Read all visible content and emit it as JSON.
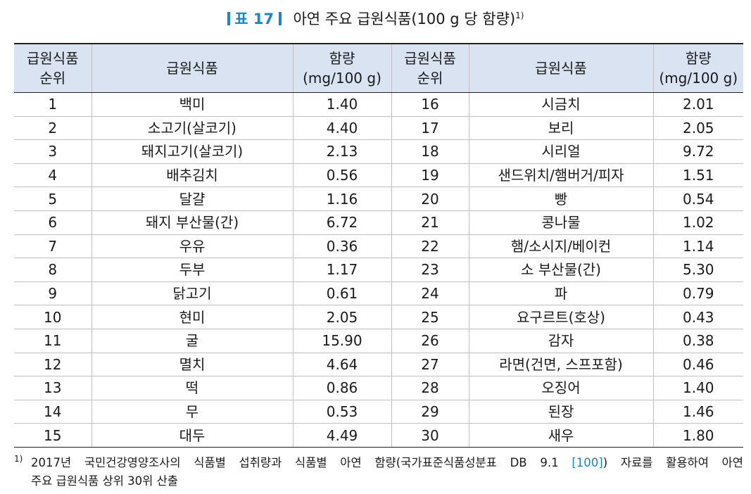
{
  "title": {
    "label": "표 17",
    "text": "아연 주요 급원식품(100 g 당 함량)",
    "footnote_mark": "1)"
  },
  "table": {
    "headers": {
      "rank": [
        "급원식품",
        "순위"
      ],
      "food": "급원식품",
      "amount": [
        "함량",
        "(mg/100 g)"
      ]
    },
    "left": [
      {
        "rank": "1",
        "food": "백미",
        "amount": "1.40"
      },
      {
        "rank": "2",
        "food": "소고기(살코기)",
        "amount": "4.40"
      },
      {
        "rank": "3",
        "food": "돼지고기(살코기)",
        "amount": "2.13"
      },
      {
        "rank": "4",
        "food": "배추김치",
        "amount": "0.56"
      },
      {
        "rank": "5",
        "food": "달걀",
        "amount": "1.16"
      },
      {
        "rank": "6",
        "food": "돼지 부산물(간)",
        "amount": "6.72"
      },
      {
        "rank": "7",
        "food": "우유",
        "amount": "0.36"
      },
      {
        "rank": "8",
        "food": "두부",
        "amount": "1.17"
      },
      {
        "rank": "9",
        "food": "닭고기",
        "amount": "0.61"
      },
      {
        "rank": "10",
        "food": "현미",
        "amount": "2.05"
      },
      {
        "rank": "11",
        "food": "굴",
        "amount": "15.90"
      },
      {
        "rank": "12",
        "food": "멸치",
        "amount": "4.64"
      },
      {
        "rank": "13",
        "food": "떡",
        "amount": "0.86"
      },
      {
        "rank": "14",
        "food": "무",
        "amount": "0.53"
      },
      {
        "rank": "15",
        "food": "대두",
        "amount": "4.49"
      }
    ],
    "right": [
      {
        "rank": "16",
        "food": "시금치",
        "amount": "2.01"
      },
      {
        "rank": "17",
        "food": "보리",
        "amount": "2.05"
      },
      {
        "rank": "18",
        "food": "시리얼",
        "amount": "9.72"
      },
      {
        "rank": "19",
        "food": "샌드위치/햄버거/피자",
        "amount": "1.51"
      },
      {
        "rank": "20",
        "food": "빵",
        "amount": "0.54"
      },
      {
        "rank": "21",
        "food": "콩나물",
        "amount": "1.02"
      },
      {
        "rank": "22",
        "food": "햄/소시지/베이컨",
        "amount": "1.14"
      },
      {
        "rank": "23",
        "food": "소 부산물(간)",
        "amount": "5.30"
      },
      {
        "rank": "24",
        "food": "파",
        "amount": "0.79"
      },
      {
        "rank": "25",
        "food": "요구르트(호상)",
        "amount": "0.43"
      },
      {
        "rank": "26",
        "food": "감자",
        "amount": "0.38"
      },
      {
        "rank": "27",
        "food": "라면(건면, 스프포함)",
        "amount": "0.46"
      },
      {
        "rank": "28",
        "food": "오징어",
        "amount": "1.40"
      },
      {
        "rank": "29",
        "food": "된장",
        "amount": "1.46"
      },
      {
        "rank": "30",
        "food": "새우",
        "amount": "1.80"
      }
    ]
  },
  "footnote": {
    "mark": "1)",
    "line1_before": "2017년 국민건강영양조사의 식품별 섭취량과 식품별 아연 함량(국가표준식품성분표 DB 9.1 ",
    "ref": "[100]",
    "line1_after": ") 자료를 활용하여 아연",
    "line2": "주요 급원식품 상위 30위 산출"
  },
  "colors": {
    "accent": "#1a86c8",
    "header_bg": "#d9e3f2"
  }
}
